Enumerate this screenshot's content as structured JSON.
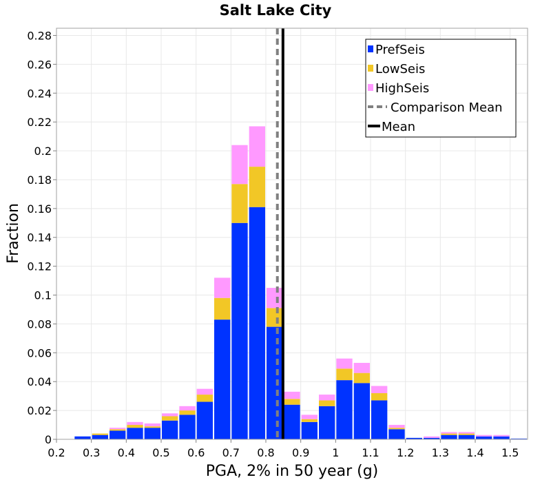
{
  "chart_data": {
    "type": "bar",
    "stacked": true,
    "title": "Salt Lake City",
    "xlabel": "PGA, 2% in 50 year (g)",
    "ylabel": "Fraction",
    "xlim": [
      0.2,
      1.55
    ],
    "ylim": [
      0,
      0.285
    ],
    "bin_width": 0.05,
    "x_ticks": [
      0.2,
      0.3,
      0.4,
      0.5,
      0.6,
      0.7,
      0.8,
      0.9,
      1.0,
      1.1,
      1.2,
      1.3,
      1.4,
      1.5
    ],
    "x_tick_labels": [
      "0.2",
      "0.3",
      "0.4",
      "0.5",
      "0.6",
      "0.7",
      "0.8",
      "0.9",
      "1",
      "1.1",
      "1.2",
      "1.3",
      "1.4",
      "1.5"
    ],
    "y_ticks": [
      0,
      0.02,
      0.04,
      0.06,
      0.08,
      0.1,
      0.12,
      0.14,
      0.16,
      0.18,
      0.2,
      0.22,
      0.24,
      0.26,
      0.28
    ],
    "y_tick_labels": [
      "0",
      "0.02",
      "0.04",
      "0.06",
      "0.08",
      "0.1",
      "0.12",
      "0.14",
      "0.16",
      "0.18",
      "0.2",
      "0.22",
      "0.24",
      "0.26",
      "0.28"
    ],
    "bin_starts": [
      0.25,
      0.3,
      0.35,
      0.4,
      0.45,
      0.5,
      0.55,
      0.6,
      0.65,
      0.7,
      0.75,
      0.8,
      0.85,
      0.9,
      0.95,
      1.0,
      1.05,
      1.1,
      1.15,
      1.2,
      1.25,
      1.3,
      1.35,
      1.4,
      1.45,
      1.5
    ],
    "series": [
      {
        "name": "PrefSeis",
        "color": "#0033ff",
        "values": [
          0.002,
          0.003,
          0.006,
          0.008,
          0.008,
          0.013,
          0.017,
          0.026,
          0.083,
          0.15,
          0.161,
          0.078,
          0.024,
          0.012,
          0.023,
          0.041,
          0.039,
          0.027,
          0.007,
          0.001,
          0.001,
          0.003,
          0.003,
          0.002,
          0.002,
          0.0005
        ]
      },
      {
        "name": "LowSeis",
        "color": "#f2c726",
        "values": [
          0.0,
          0.001,
          0.001,
          0.002,
          0.001,
          0.003,
          0.003,
          0.005,
          0.015,
          0.027,
          0.028,
          0.013,
          0.004,
          0.002,
          0.004,
          0.008,
          0.007,
          0.005,
          0.001,
          0.0,
          0.0,
          0.001,
          0.001,
          0.0,
          0.0,
          0.0
        ]
      },
      {
        "name": "HighSeis",
        "color": "#ff99ff",
        "values": [
          0.0,
          0.0,
          0.001,
          0.002,
          0.002,
          0.002,
          0.003,
          0.004,
          0.014,
          0.027,
          0.028,
          0.014,
          0.005,
          0.003,
          0.004,
          0.007,
          0.007,
          0.005,
          0.002,
          0.0,
          0.001,
          0.001,
          0.001,
          0.001,
          0.001,
          0.0
        ]
      }
    ],
    "comparison_mean": {
      "name": "Comparison Mean",
      "x": 0.833,
      "color": "#808080",
      "style": "dashed"
    },
    "mean": {
      "name": "Mean",
      "x": 0.849,
      "color": "#000000",
      "style": "solid"
    },
    "legend": {
      "position": "top-right",
      "entries": [
        {
          "label": "PrefSeis",
          "kind": "bar",
          "color": "#0033ff"
        },
        {
          "label": "LowSeis",
          "kind": "bar",
          "color": "#f2c726"
        },
        {
          "label": "HighSeis",
          "kind": "bar",
          "color": "#ff99ff"
        },
        {
          "label": "Comparison Mean",
          "kind": "dashed-line",
          "color": "#808080"
        },
        {
          "label": "Mean",
          "kind": "solid-line",
          "color": "#000000"
        }
      ]
    },
    "grid": true
  }
}
